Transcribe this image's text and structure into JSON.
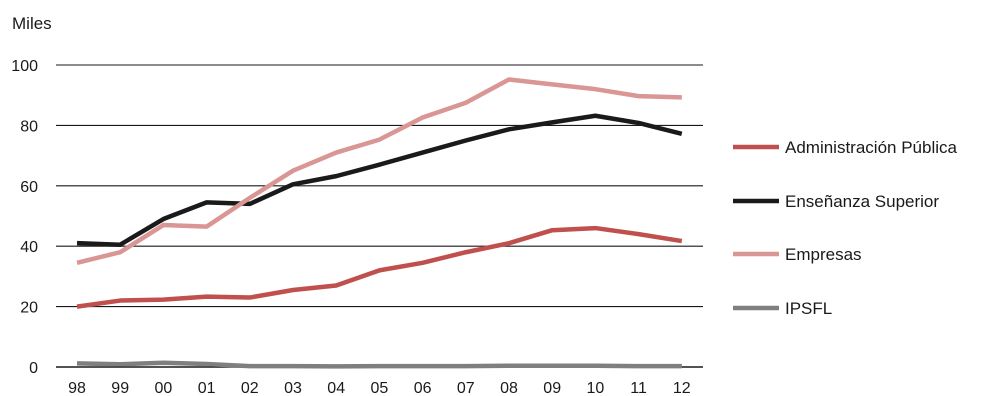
{
  "chart_data": {
    "type": "line",
    "ylabel": "Miles",
    "ylim": [
      0,
      100
    ],
    "yticks": [
      0,
      20,
      40,
      60,
      80,
      100
    ],
    "categories": [
      "98",
      "99",
      "00",
      "01",
      "02",
      "03",
      "04",
      "05",
      "06",
      "07",
      "08",
      "09",
      "10",
      "11",
      "12"
    ],
    "grid": "horizontal",
    "legend_position": "right",
    "series": [
      {
        "name": "Administración Pública",
        "color": "#c0504d",
        "values": [
          20,
          22,
          22.3,
          23.3,
          23,
          25.5,
          27,
          32,
          34.5,
          38,
          41,
          45.3,
          46,
          44,
          41.7
        ]
      },
      {
        "name": "Enseñanza Superior",
        "color": "#1a1a1a",
        "values": [
          41,
          40.5,
          49,
          54.5,
          54,
          60.5,
          63.2,
          67,
          71,
          75,
          78.7,
          81,
          83.2,
          80.8,
          77.2
        ]
      },
      {
        "name": "Empresas",
        "color": "#d99694",
        "values": [
          34.5,
          38,
          47,
          46.5,
          56,
          65,
          71,
          75.3,
          82.6,
          87.5,
          95.2,
          93.6,
          92,
          89.7,
          89.3
        ]
      },
      {
        "name": "IPSFL",
        "color": "#7f7f7f",
        "values": [
          1.2,
          0.9,
          1.4,
          1.0,
          0.3,
          0.3,
          0.2,
          0.3,
          0.3,
          0.3,
          0.4,
          0.4,
          0.4,
          0.3,
          0.3
        ]
      }
    ]
  }
}
